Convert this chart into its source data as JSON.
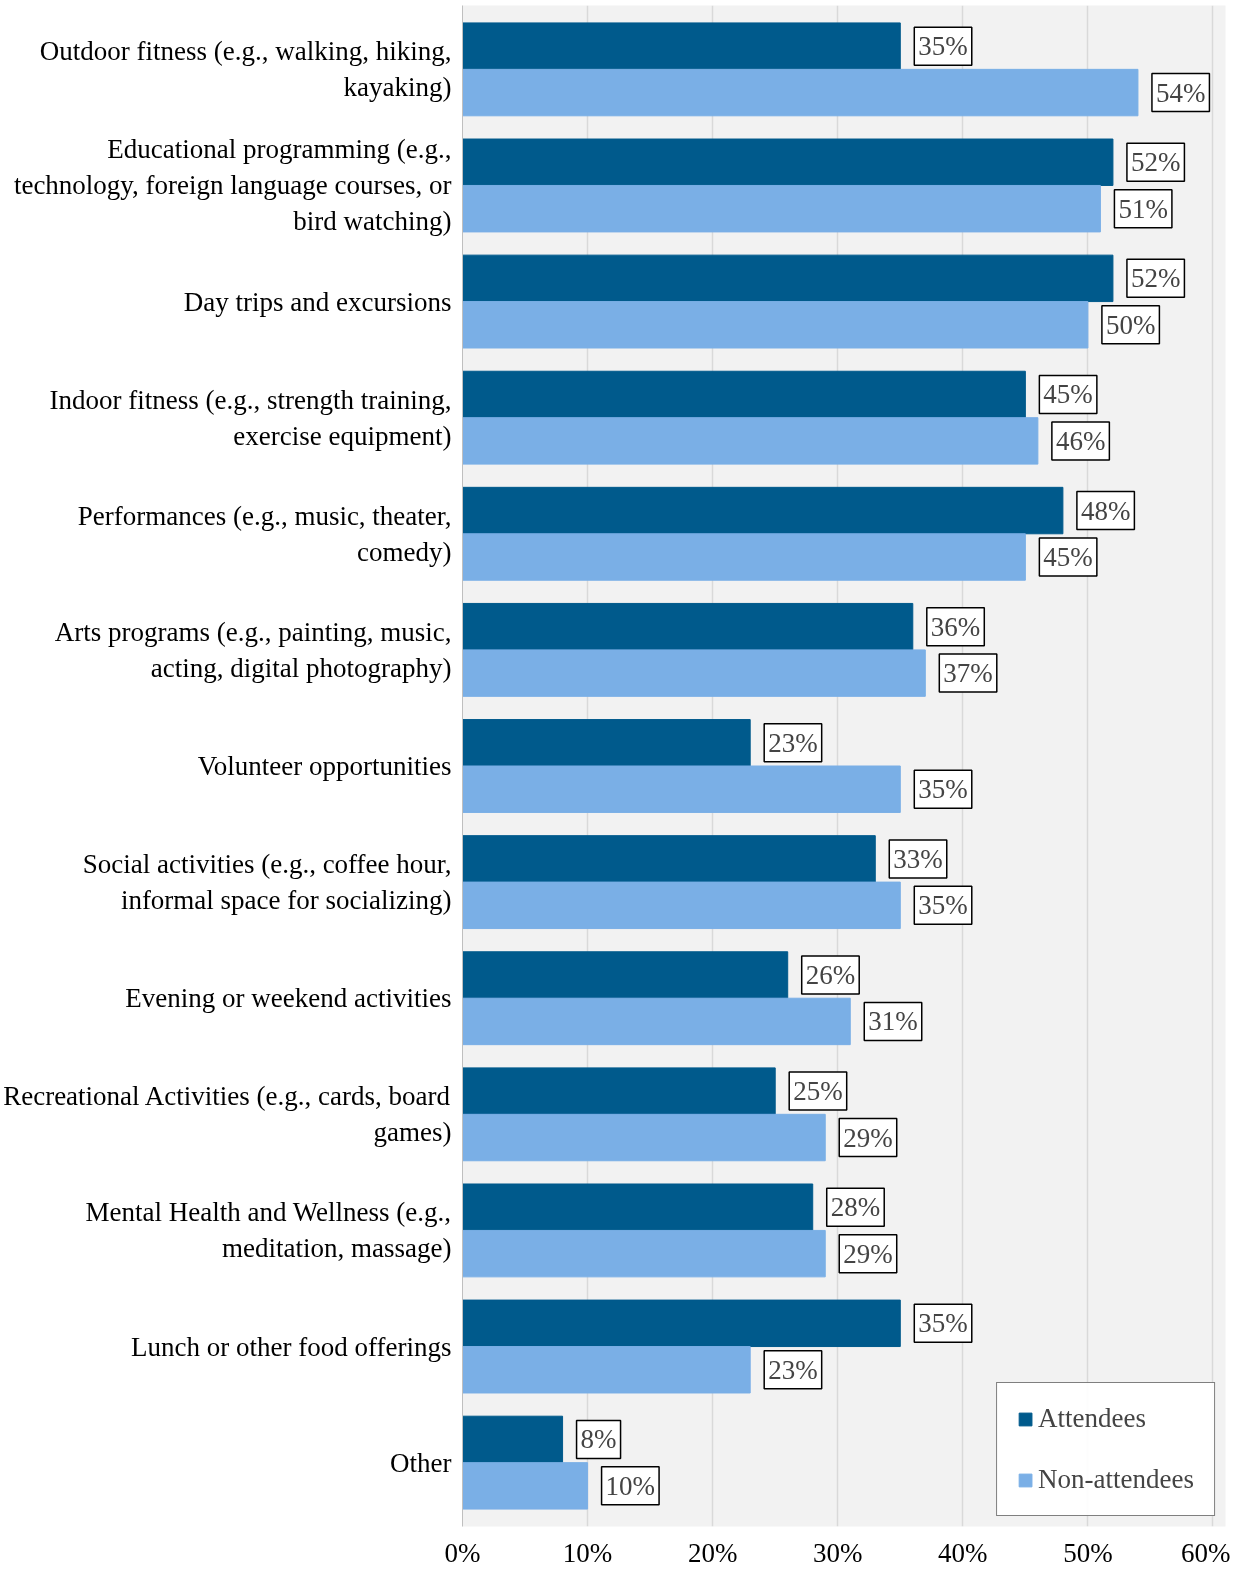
{
  "chart_data": {
    "type": "bar",
    "orientation": "horizontal",
    "categories": [
      "Outdoor fitness (e.g., walking, hiking,\nkayaking)",
      "Educational programming (e.g.,\ntechnology, foreign language courses, or\nbird watching)",
      "Day trips and excursions",
      "Indoor fitness (e.g., strength training,\nexercise equipment)",
      "Performances (e.g., music, theater,\ncomedy)",
      "Arts programs (e.g., painting, music,\nacting, digital photography)",
      "Volunteer opportunities",
      "Social activities (e.g., coffee hour,\ninformal space for socializing)",
      "Evening or weekend activities",
      "Recreational Activities (e.g., cards, board\ngames)",
      "Mental Health and Wellness (e.g.,\nmeditation, massage)",
      "Lunch or other food offerings",
      "Other"
    ],
    "series": [
      {
        "name": "Attendees",
        "color": "#005a8c",
        "values": [
          35,
          52,
          52,
          45,
          48,
          36,
          23,
          33,
          26,
          25,
          28,
          35,
          8
        ],
        "value_labels": [
          "35%",
          "52%",
          "52%",
          "45%",
          "48%",
          "36%",
          "23%",
          "33%",
          "26%",
          "25%",
          "28%",
          "35%",
          "8%"
        ]
      },
      {
        "name": "Non-attendees",
        "color": "#7aafe6",
        "values": [
          54,
          51,
          50,
          46,
          45,
          37,
          35,
          35,
          31,
          29,
          29,
          23,
          10
        ],
        "value_labels": [
          "54%",
          "51%",
          "50%",
          "46%",
          "45%",
          "37%",
          "35%",
          "35%",
          "31%",
          "29%",
          "29%",
          "23%",
          "10%"
        ]
      }
    ],
    "xlim": [
      0,
      61
    ],
    "xticks": [
      {
        "value": 0,
        "label": "0%"
      },
      {
        "value": 10,
        "label": "10%"
      },
      {
        "value": 20,
        "label": "20%"
      },
      {
        "value": 30,
        "label": "30%"
      },
      {
        "value": 40,
        "label": "40%"
      },
      {
        "value": 50,
        "label": "50%"
      },
      {
        "value": 60,
        "label": "60%"
      }
    ],
    "grid": "x",
    "legend": "bottom right"
  }
}
